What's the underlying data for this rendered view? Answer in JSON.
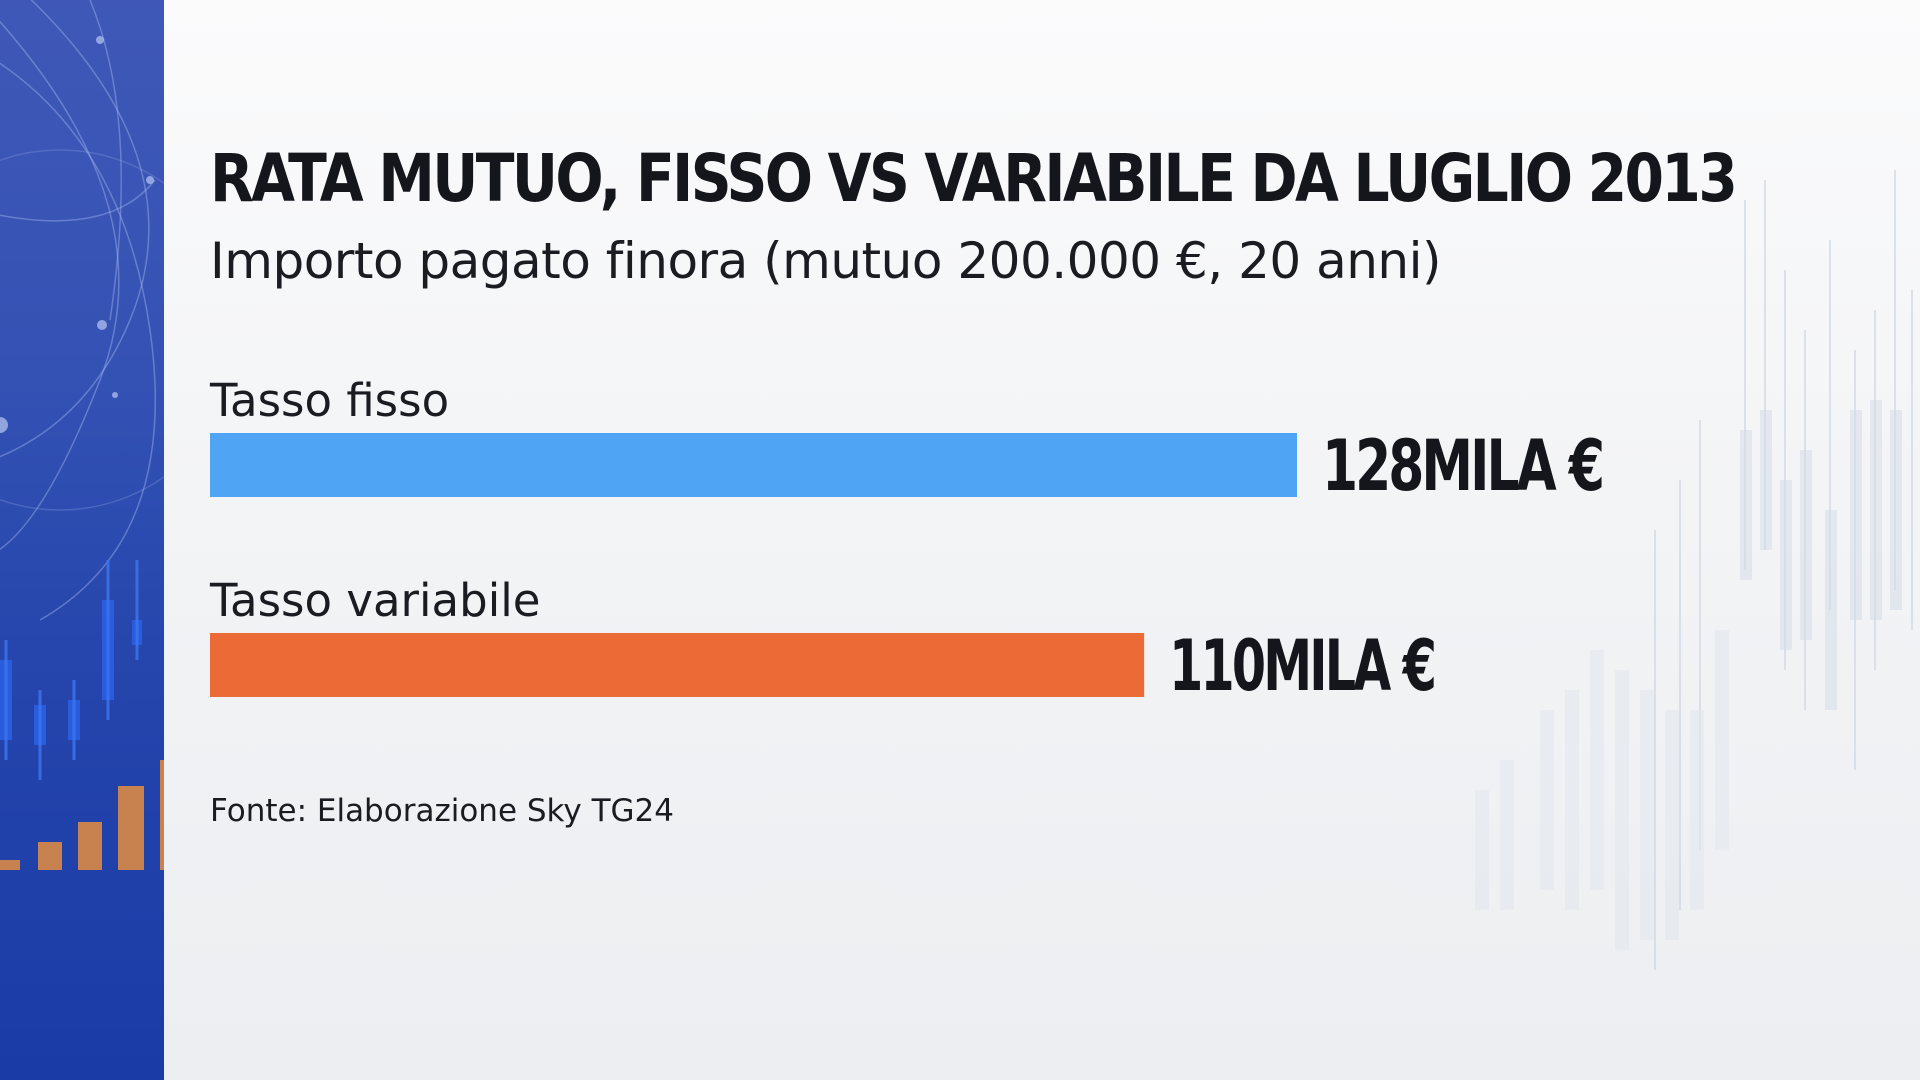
{
  "colors": {
    "fisso": "#4fa5f3",
    "variabile": "#ec6a36",
    "panel": "#2a49ae",
    "text": "#15161b"
  },
  "chart_data": {
    "type": "bar",
    "orientation": "horizontal",
    "title": "RATA MUTUO, FISSO VS VARIABILE DA LUGLIO 2013",
    "subtitle": "Importo pagato finora (mutuo 200.000 €, 20 anni)",
    "categories": [
      "Tasso fisso",
      "Tasso variabile"
    ],
    "values": [
      128,
      110
    ],
    "value_labels": [
      "128MILA €",
      "110MILA €"
    ],
    "unit": "migliaia di €",
    "bar_colors": [
      "#4fa5f3",
      "#ec6a36"
    ],
    "xlim": [
      0,
      128
    ],
    "grid": false,
    "legend": "none",
    "source": "Fonte: Elaborazione Sky TG24"
  }
}
